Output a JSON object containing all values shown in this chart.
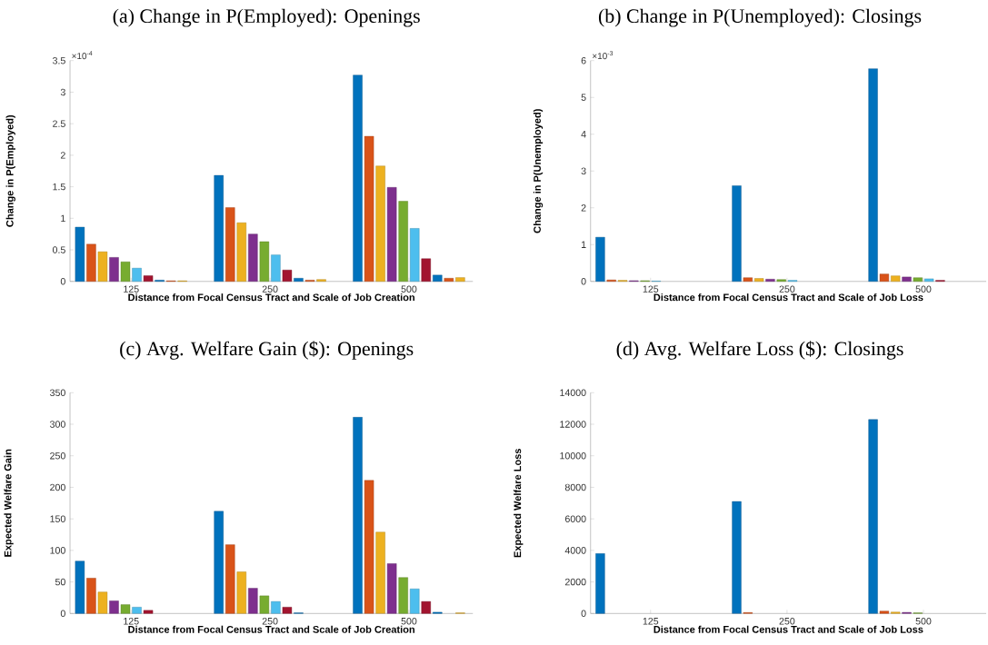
{
  "chart_data": [
    {
      "type": "bar",
      "title": "(a) Change in P(Employed): Openings",
      "xlabel": "Distance from Focal Census Tract and Scale of Job Creation",
      "ylabel": "Change in P(Employed)",
      "annotations": [
        "×10$^{-4}$"
      ],
      "categories": [
        "125",
        "250",
        "500"
      ],
      "ylim": [
        0,
        3.5
      ],
      "yticks": [
        0,
        0.5,
        1,
        1.5,
        2,
        2.5,
        3,
        3.5
      ],
      "series": [
        {
          "color": "#0072bd",
          "values": [
            0.86,
            1.68,
            3.27
          ]
        },
        {
          "color": "#d95319",
          "values": [
            0.59,
            1.17,
            2.3
          ]
        },
        {
          "color": "#edb120",
          "values": [
            0.47,
            0.93,
            1.83
          ]
        },
        {
          "color": "#7e2f8e",
          "values": [
            0.38,
            0.75,
            1.49
          ]
        },
        {
          "color": "#77ac30",
          "values": [
            0.31,
            0.63,
            1.27
          ]
        },
        {
          "color": "#4dbeee",
          "values": [
            0.21,
            0.42,
            0.84
          ]
        },
        {
          "color": "#a2142f",
          "values": [
            0.09,
            0.18,
            0.36
          ]
        },
        {
          "color": "#0072bd",
          "values": [
            0.02,
            0.05,
            0.1
          ]
        },
        {
          "color": "#d95319",
          "values": [
            0.01,
            0.02,
            0.05
          ]
        },
        {
          "color": "#edb120",
          "values": [
            0.01,
            0.03,
            0.06
          ]
        }
      ]
    },
    {
      "type": "bar",
      "title": "(b) Change in P(Unemployed): Closings",
      "xlabel": "Distance from Focal Census Tract and Scale of Job Loss",
      "ylabel": "Change in P(Unemployed)",
      "annotations": [
        "×10$^{-3}$"
      ],
      "categories": [
        "125",
        "250",
        "500"
      ],
      "ylim": [
        0,
        6
      ],
      "yticks": [
        0,
        1,
        2,
        3,
        4,
        5,
        6
      ],
      "series": [
        {
          "color": "#0072bd",
          "values": [
            1.2,
            2.6,
            5.78
          ]
        },
        {
          "color": "#d95319",
          "values": [
            0.04,
            0.1,
            0.2
          ]
        },
        {
          "color": "#edb120",
          "values": [
            0.03,
            0.08,
            0.15
          ]
        },
        {
          "color": "#7e2f8e",
          "values": [
            0.02,
            0.06,
            0.12
          ]
        },
        {
          "color": "#77ac30",
          "values": [
            0.02,
            0.05,
            0.1
          ]
        },
        {
          "color": "#4dbeee",
          "values": [
            0.01,
            0.03,
            0.07
          ]
        },
        {
          "color": "#a2142f",
          "values": [
            null,
            null,
            0.03
          ]
        },
        {
          "color": "#0072bd",
          "values": [
            null,
            null,
            null
          ]
        },
        {
          "color": "#d95319",
          "values": [
            null,
            null,
            null
          ]
        },
        {
          "color": "#edb120",
          "values": [
            null,
            null,
            null
          ]
        }
      ]
    },
    {
      "type": "bar",
      "title": "(c) Avg. Welfare Gain ($): Openings",
      "xlabel": "Distance from Focal Census Tract and Scale of Job Creation",
      "ylabel": "Expected Welfare Gain",
      "categories": [
        "125",
        "250",
        "500"
      ],
      "ylim": [
        0,
        350
      ],
      "yticks": [
        0,
        50,
        100,
        150,
        200,
        250,
        300,
        350
      ],
      "series": [
        {
          "color": "#0072bd",
          "values": [
            83,
            162,
            311
          ]
        },
        {
          "color": "#d95319",
          "values": [
            56,
            109,
            211
          ]
        },
        {
          "color": "#edb120",
          "values": [
            34,
            66,
            129
          ]
        },
        {
          "color": "#7e2f8e",
          "values": [
            20,
            40,
            79
          ]
        },
        {
          "color": "#77ac30",
          "values": [
            14,
            28,
            57
          ]
        },
        {
          "color": "#4dbeee",
          "values": [
            10,
            19,
            39
          ]
        },
        {
          "color": "#a2142f",
          "values": [
            5,
            10,
            19
          ]
        },
        {
          "color": "#0072bd",
          "values": [
            null,
            1,
            2
          ]
        },
        {
          "color": "#d95319",
          "values": [
            null,
            null,
            null
          ]
        },
        {
          "color": "#edb120",
          "values": [
            null,
            null,
            1
          ]
        }
      ]
    },
    {
      "type": "bar",
      "title": "(d) Avg. Welfare Loss ($): Closings",
      "xlabel": "Distance from Focal Census Tract and Scale of Job Loss",
      "ylabel": "Expected Welfare Loss",
      "categories": [
        "125",
        "250",
        "500"
      ],
      "ylim": [
        0,
        14000
      ],
      "yticks": [
        0,
        2000,
        4000,
        6000,
        8000,
        10000,
        12000,
        14000
      ],
      "series": [
        {
          "color": "#0072bd",
          "values": [
            3800,
            7100,
            12300
          ]
        },
        {
          "color": "#d95319",
          "values": [
            null,
            60,
            150
          ]
        },
        {
          "color": "#edb120",
          "values": [
            null,
            null,
            90
          ]
        },
        {
          "color": "#7e2f8e",
          "values": [
            null,
            null,
            70
          ]
        },
        {
          "color": "#77ac30",
          "values": [
            null,
            null,
            40
          ]
        },
        {
          "color": "#4dbeee",
          "values": [
            null,
            null,
            null
          ]
        },
        {
          "color": "#a2142f",
          "values": [
            null,
            null,
            null
          ]
        },
        {
          "color": "#0072bd",
          "values": [
            null,
            null,
            null
          ]
        },
        {
          "color": "#d95319",
          "values": [
            null,
            null,
            null
          ]
        },
        {
          "color": "#edb120",
          "values": [
            null,
            null,
            null
          ]
        }
      ]
    }
  ]
}
